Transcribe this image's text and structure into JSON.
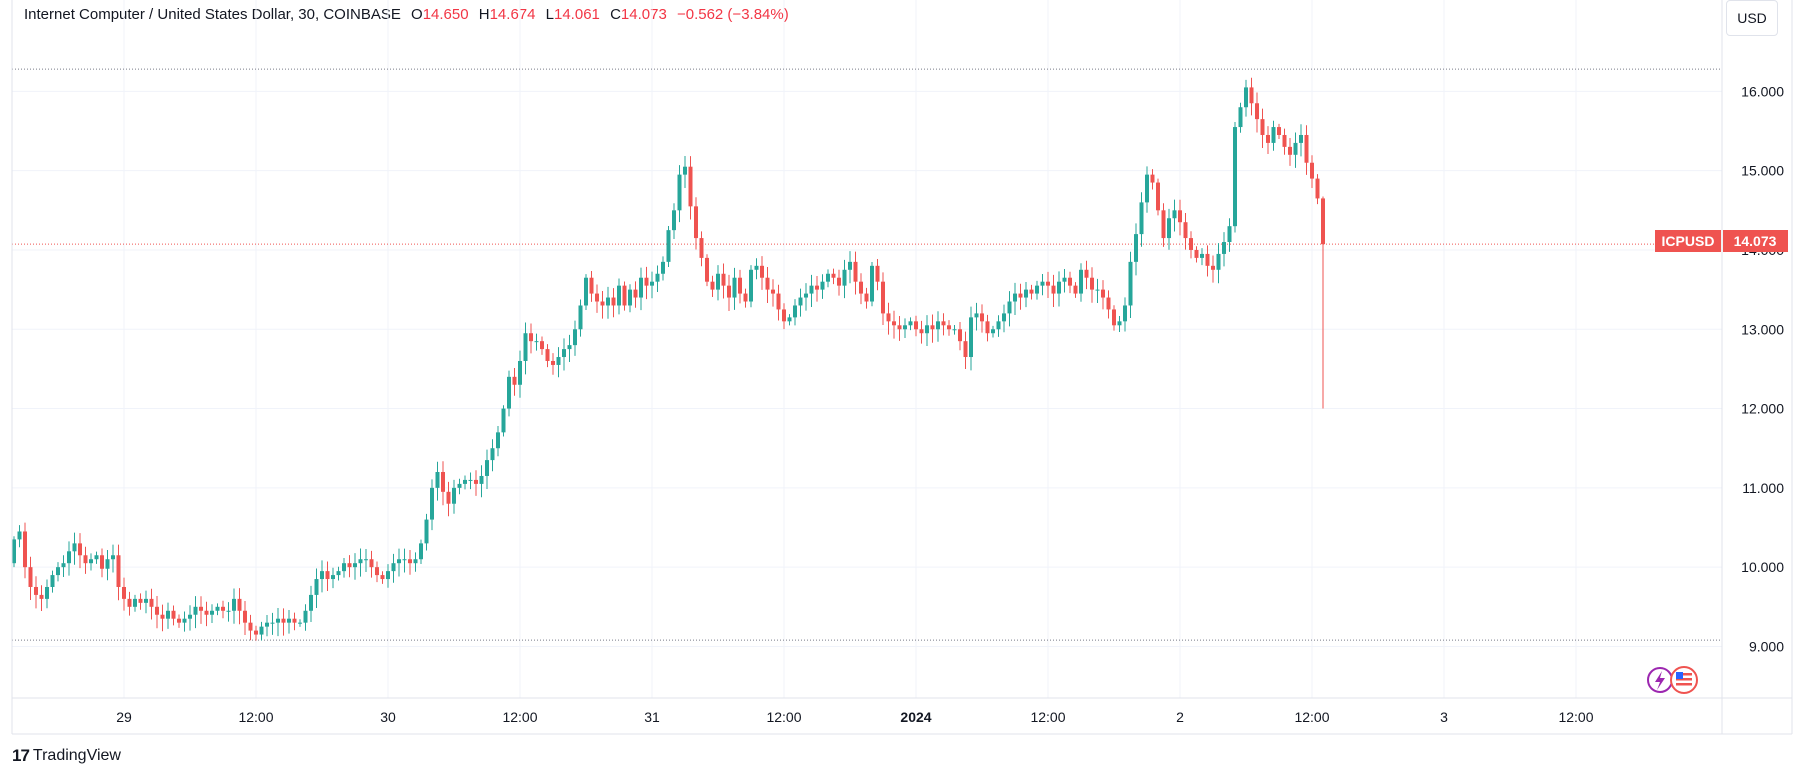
{
  "legend": {
    "title": "Internet Computer / United States Dollar, 30, COINBASE",
    "o_label": "O",
    "o_value": "14.650",
    "h_label": "H",
    "h_value": "14.674",
    "l_label": "L",
    "l_value": "14.061",
    "c_label": "C",
    "c_value": "14.073",
    "change": "−0.562 (−3.84%)"
  },
  "currency_button": "USD",
  "price_tag": {
    "symbol": "ICPUSD",
    "value": "14.073"
  },
  "branding": {
    "logo_mark": "17",
    "logo_text": "TradingView"
  },
  "colors": {
    "up": "#26a69a",
    "down": "#ef5350",
    "grid": "#f0f3fa",
    "axis_text": "#131722"
  },
  "icons": [
    "lightning-icon",
    "us-flag-icon"
  ],
  "chart_data": {
    "type": "candlestick",
    "symbol": "ICPUSD",
    "interval": "30",
    "exchange": "COINBASE",
    "ylim": [
      8.35,
      16.9
    ],
    "y_ticks": [
      "9.000",
      "10.000",
      "11.000",
      "12.000",
      "13.000",
      "14.000",
      "15.000",
      "16.000"
    ],
    "x_ticks": [
      {
        "label": "29",
        "bar": 20,
        "bold": false
      },
      {
        "label": "12:00",
        "bar": 44,
        "bold": false
      },
      {
        "label": "30",
        "bar": 68,
        "bold": false
      },
      {
        "label": "12:00",
        "bar": 92,
        "bold": false
      },
      {
        "label": "31",
        "bar": 116,
        "bold": false
      },
      {
        "label": "12:00",
        "bar": 140,
        "bold": false
      },
      {
        "label": "2024",
        "bar": 164,
        "bold": true
      },
      {
        "label": "12:00",
        "bar": 188,
        "bold": false
      },
      {
        "label": "2",
        "bar": 212,
        "bold": false
      },
      {
        "label": "12:00",
        "bar": 236,
        "bold": false
      },
      {
        "label": "3",
        "bar": 260,
        "bold": false
      },
      {
        "label": "12:00",
        "bar": 284,
        "bold": false
      }
    ],
    "high_line": 16.28,
    "low_line": 9.08,
    "last_price": 14.073,
    "closes": [
      10.35,
      10.45,
      10.0,
      9.75,
      9.65,
      9.6,
      9.75,
      9.9,
      10.0,
      10.05,
      10.2,
      10.3,
      10.15,
      10.05,
      10.1,
      10.15,
      9.98,
      10.1,
      10.15,
      9.75,
      9.6,
      9.5,
      9.6,
      9.55,
      9.6,
      9.5,
      9.4,
      9.35,
      9.45,
      9.35,
      9.3,
      9.35,
      9.4,
      9.5,
      9.45,
      9.4,
      9.45,
      9.5,
      9.45,
      9.45,
      9.6,
      9.45,
      9.3,
      9.2,
      9.15,
      9.25,
      9.3,
      9.3,
      9.35,
      9.3,
      9.35,
      9.3,
      9.3,
      9.45,
      9.65,
      9.85,
      9.95,
      9.85,
      9.9,
      9.95,
      10.05,
      10.0,
      10.05,
      10.1,
      10.1,
      10.0,
      9.9,
      9.85,
      9.95,
      10.05,
      10.1,
      10.1,
      10.05,
      10.1,
      10.3,
      10.6,
      11.0,
      11.2,
      10.95,
      10.8,
      11.0,
      11.05,
      11.1,
      11.1,
      11.05,
      11.15,
      11.35,
      11.5,
      11.7,
      12.0,
      12.4,
      12.3,
      12.6,
      12.95,
      12.85,
      12.85,
      12.75,
      12.6,
      12.55,
      12.65,
      12.75,
      12.8,
      13.0,
      13.3,
      13.65,
      13.45,
      13.35,
      13.3,
      13.4,
      13.3,
      13.55,
      13.3,
      13.5,
      13.4,
      13.65,
      13.55,
      13.6,
      13.7,
      13.85,
      14.25,
      14.5,
      14.95,
      15.05,
      14.55,
      14.15,
      13.9,
      13.6,
      13.5,
      13.7,
      13.55,
      13.4,
      13.65,
      13.45,
      13.35,
      13.75,
      13.8,
      13.65,
      13.5,
      13.45,
      13.25,
      13.1,
      13.15,
      13.3,
      13.4,
      13.45,
      13.55,
      13.5,
      13.6,
      13.7,
      13.65,
      13.55,
      13.75,
      13.85,
      13.6,
      13.45,
      13.35,
      13.8,
      13.6,
      13.2,
      13.1,
      13.05,
      13.0,
      13.05,
      13.1,
      13.0,
      12.95,
      13.05,
      13.0,
      13.1,
      13.05,
      13.0,
      13.0,
      12.85,
      12.65,
      13.15,
      13.2,
      13.1,
      12.95,
      13.0,
      13.1,
      13.2,
      13.35,
      13.45,
      13.4,
      13.5,
      13.45,
      13.55,
      13.6,
      13.55,
      13.45,
      13.6,
      13.65,
      13.55,
      13.45,
      13.75,
      13.65,
      13.5,
      13.5,
      13.4,
      13.25,
      13.05,
      13.1,
      13.3,
      13.85,
      14.2,
      14.6,
      14.95,
      14.85,
      14.5,
      14.15,
      14.4,
      14.5,
      14.35,
      14.15,
      14.0,
      13.9,
      13.95,
      13.8,
      13.75,
      13.95,
      14.1,
      14.3,
      15.55,
      15.8,
      16.05,
      15.85,
      15.65,
      15.45,
      15.35,
      15.55,
      15.45,
      15.3,
      15.2,
      15.35,
      15.45,
      15.1,
      14.9,
      14.65,
      14.073
    ]
  }
}
